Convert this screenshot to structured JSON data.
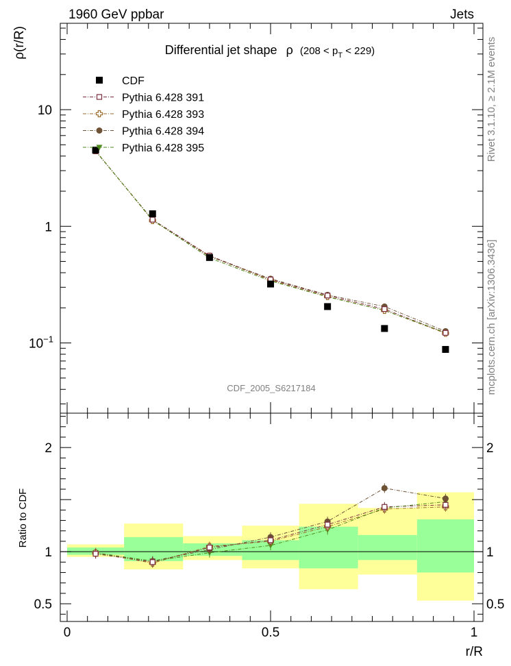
{
  "header": {
    "left": "1960 GeV ppbar",
    "right": "Jets",
    "side_top": "Rivet 3.1.10, ≥ 2.1M events",
    "side_bottom": "mcplots.cern.ch [arXiv:1306.3436]",
    "analysis_id": "CDF_2005_S6217184"
  },
  "chart_data": [
    {
      "type": "scatter",
      "title": "Differential jet shape",
      "title_symbol": "ρ",
      "title_range": "(208 < p",
      "title_range_sub": "T",
      "title_range_end": " < 229)",
      "ylabel": "ρ(r/R)",
      "xlabel": "",
      "yscale": "log",
      "xlim": [
        0,
        1
      ],
      "ylim": [
        0.025,
        55
      ],
      "yticks": [
        {
          "value": 10,
          "label": "10"
        },
        {
          "value": 1,
          "label": "1"
        },
        {
          "value": 0.1,
          "label": "10",
          "sup": "−1"
        }
      ],
      "legend_position": "top-left",
      "x": [
        0.07,
        0.21,
        0.35,
        0.5,
        0.64,
        0.78,
        0.93
      ],
      "series": [
        {
          "name": "CDF",
          "color": "#000000",
          "marker": "square-filled",
          "line": false,
          "values": [
            4.5,
            1.28,
            0.54,
            0.32,
            0.205,
            0.133,
            0.088
          ]
        },
        {
          "name": "Pythia 6.428 391",
          "color": "#7b2c3c",
          "marker": "square-open",
          "line": true,
          "values": [
            4.4,
            1.14,
            0.56,
            0.35,
            0.255,
            0.195,
            0.122
          ]
        },
        {
          "name": "Pythia 6.428 393",
          "color": "#9a6a28",
          "marker": "cross-open",
          "line": true,
          "values": [
            4.45,
            1.12,
            0.555,
            0.345,
            0.25,
            0.19,
            0.121
          ]
        },
        {
          "name": "Pythia 6.428 394",
          "color": "#6e5236",
          "marker": "circle-filled",
          "line": true,
          "values": [
            4.42,
            1.13,
            0.55,
            0.355,
            0.258,
            0.205,
            0.126
          ]
        },
        {
          "name": "Pythia 6.428 395",
          "color": "#4e8a1c",
          "marker": "triangle-down-filled",
          "line": true,
          "values": [
            4.43,
            1.13,
            0.535,
            0.34,
            0.248,
            0.19,
            0.123
          ]
        }
      ]
    },
    {
      "type": "scatter",
      "title": "",
      "ylabel": "Ratio to CDF",
      "xlabel": "r/R",
      "xlim": [
        0,
        1
      ],
      "ylim": [
        0.33,
        2.33
      ],
      "yticks": [
        {
          "value": 2,
          "label": "2"
        },
        {
          "value": 1,
          "label": "1"
        },
        {
          "value": 0.5,
          "label": "0.5"
        }
      ],
      "xticks": [
        {
          "value": 0,
          "label": "0"
        },
        {
          "value": 0.5,
          "label": "0.5"
        },
        {
          "value": 1,
          "label": "1"
        }
      ],
      "reference_line": 1,
      "bands": [
        {
          "x0": 0.0,
          "x1": 0.14,
          "green": [
            0.97,
            1.04
          ],
          "yellow": [
            0.95,
            1.07
          ]
        },
        {
          "x0": 0.14,
          "x1": 0.285,
          "green": [
            0.91,
            1.14
          ],
          "yellow": [
            0.83,
            1.27
          ]
        },
        {
          "x0": 0.285,
          "x1": 0.43,
          "green": [
            0.96,
            1.08
          ],
          "yellow": [
            0.92,
            1.15
          ]
        },
        {
          "x0": 0.43,
          "x1": 0.57,
          "green": [
            0.92,
            1.11
          ],
          "yellow": [
            0.84,
            1.25
          ]
        },
        {
          "x0": 0.57,
          "x1": 0.715,
          "green": [
            0.84,
            1.24
          ],
          "yellow": [
            0.64,
            1.46
          ]
        },
        {
          "x0": 0.715,
          "x1": 0.86,
          "green": [
            0.92,
            1.16
          ],
          "yellow": [
            0.78,
            1.42
          ]
        },
        {
          "x0": 0.86,
          "x1": 1.0,
          "green": [
            0.8,
            1.31
          ],
          "yellow": [
            0.53,
            1.57
          ]
        }
      ],
      "x": [
        0.07,
        0.21,
        0.35,
        0.5,
        0.64,
        0.78,
        0.93
      ],
      "series": [
        {
          "name": "Pythia 6.428 391",
          "color": "#7b2c3c",
          "marker": "square-open",
          "values": [
            0.98,
            0.9,
            1.04,
            1.11,
            1.26,
            1.43,
            1.45
          ]
        },
        {
          "name": "Pythia 6.428 393",
          "color": "#9a6a28",
          "marker": "cross-open",
          "values": [
            0.99,
            0.89,
            1.05,
            1.1,
            1.24,
            1.41,
            1.43
          ]
        },
        {
          "name": "Pythia 6.428 394",
          "color": "#6e5236",
          "marker": "circle-filled",
          "values": [
            0.98,
            0.91,
            1.02,
            1.14,
            1.29,
            1.61,
            1.51
          ]
        },
        {
          "name": "Pythia 6.428 395",
          "color": "#4e8a1c",
          "marker": "triangle-down-filled",
          "values": [
            0.99,
            0.91,
            0.99,
            1.06,
            1.21,
            1.42,
            1.48
          ]
        }
      ]
    }
  ]
}
